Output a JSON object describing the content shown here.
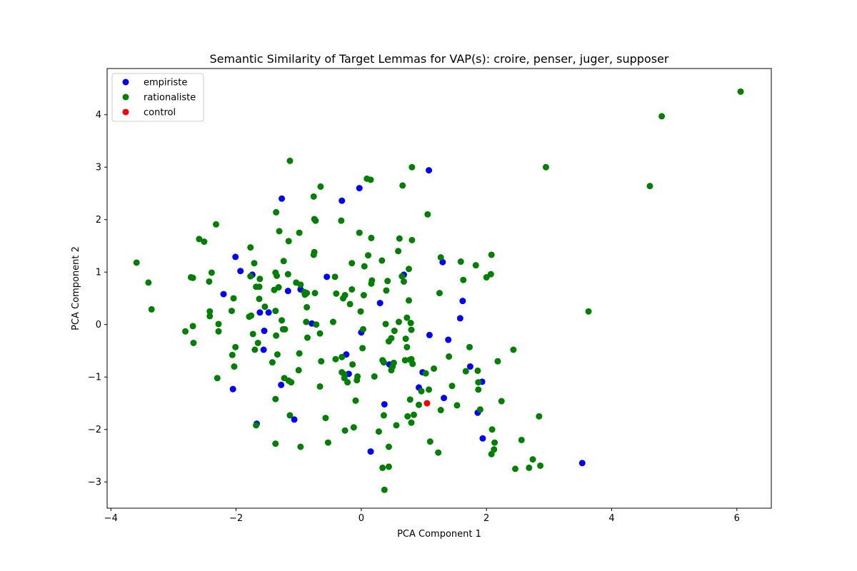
{
  "chart_data": {
    "type": "scatter",
    "title": "Semantic Similarity of Target Lemmas for VAP(s): croire, penser, juger, supposer",
    "xlabel": "PCA Component 1",
    "ylabel": "PCA Component 2",
    "xlim": [
      -4.06,
      6.55
    ],
    "ylim": [
      -3.5,
      4.88
    ],
    "xticks": [
      -4,
      -2,
      0,
      2,
      4,
      6
    ],
    "yticks": [
      -3,
      -2,
      -1,
      0,
      1,
      2,
      3,
      4
    ],
    "xtick_labels": [
      "−4",
      "−2",
      "0",
      "2",
      "4",
      "6"
    ],
    "ytick_labels": [
      "−3",
      "−2",
      "−1",
      "0",
      "1",
      "2",
      "3",
      "4"
    ],
    "grid": false,
    "legend_position": "top-left",
    "series": [
      {
        "name": "empiriste",
        "color": "#0000ff",
        "points": [
          [
            1.08,
            2.94
          ],
          [
            -0.03,
            2.6
          ],
          [
            -1.27,
            2.4
          ],
          [
            -0.31,
            2.36
          ],
          [
            -2.01,
            1.29
          ],
          [
            1.3,
            1.19
          ],
          [
            -1.93,
            1.02
          ],
          [
            -1.74,
            0.95
          ],
          [
            -0.55,
            0.91
          ],
          [
            0.68,
            0.95
          ],
          [
            -2.2,
            0.58
          ],
          [
            -1.17,
            0.64
          ],
          [
            -0.97,
            0.67
          ],
          [
            1.62,
            0.45
          ],
          [
            0.3,
            0.41
          ],
          [
            -1.62,
            0.23
          ],
          [
            -1.48,
            0.23
          ],
          [
            1.58,
            0.12
          ],
          [
            -0.79,
            0.02
          ],
          [
            -1.55,
            -0.12
          ],
          [
            0.0,
            -0.15
          ],
          [
            1.09,
            -0.2
          ],
          [
            1.39,
            -0.29
          ],
          [
            -1.56,
            -0.48
          ],
          [
            -0.24,
            -0.57
          ],
          [
            0.45,
            -0.76
          ],
          [
            1.74,
            -0.8
          ],
          [
            0.98,
            -0.91
          ],
          [
            -0.2,
            -0.94
          ],
          [
            1.93,
            -1.09
          ],
          [
            -2.05,
            -1.23
          ],
          [
            -1.28,
            -1.15
          ],
          [
            0.92,
            -1.2
          ],
          [
            1.32,
            -1.4
          ],
          [
            0.37,
            -1.52
          ],
          [
            1.86,
            -1.68
          ],
          [
            -1.67,
            -1.89
          ],
          [
            -1.07,
            -1.81
          ],
          [
            1.94,
            -2.17
          ],
          [
            0.15,
            -2.42
          ],
          [
            3.53,
            -2.64
          ]
        ]
      },
      {
        "name": "rationaliste",
        "color": "#008000",
        "points": [
          [
            6.06,
            4.44
          ],
          [
            4.8,
            3.97
          ],
          [
            2.95,
            3.0
          ],
          [
            4.61,
            2.64
          ],
          [
            3.63,
            0.25
          ],
          [
            -1.14,
            3.12
          ],
          [
            0.81,
            3.0
          ],
          [
            0.09,
            2.78
          ],
          [
            0.15,
            2.76
          ],
          [
            0.66,
            2.65
          ],
          [
            -0.65,
            2.63
          ],
          [
            -0.76,
            2.44
          ],
          [
            -1.36,
            2.14
          ],
          [
            1.06,
            2.1
          ],
          [
            -0.75,
            2.01
          ],
          [
            -0.73,
            1.98
          ],
          [
            -0.32,
            1.98
          ],
          [
            -2.32,
            1.91
          ],
          [
            -1.31,
            1.78
          ],
          [
            -0.03,
            1.75
          ],
          [
            -0.99,
            1.75
          ],
          [
            0.16,
            1.65
          ],
          [
            0.61,
            1.64
          ],
          [
            -2.59,
            1.63
          ],
          [
            -2.51,
            1.58
          ],
          [
            -1.16,
            1.59
          ],
          [
            0.81,
            1.61
          ],
          [
            -1.77,
            1.47
          ],
          [
            0.59,
            1.4
          ],
          [
            -0.75,
            1.38
          ],
          [
            -0.76,
            1.33
          ],
          [
            0.11,
            1.32
          ],
          [
            2.08,
            1.33
          ],
          [
            1.27,
            1.28
          ],
          [
            -1.24,
            1.21
          ],
          [
            0.33,
            1.22
          ],
          [
            1.59,
            1.2
          ],
          [
            -3.59,
            1.18
          ],
          [
            -0.15,
            1.17
          ],
          [
            -1.71,
            1.17
          ],
          [
            1.83,
            1.13
          ],
          [
            0.05,
            1.11
          ],
          [
            0.76,
            1.06
          ],
          [
            -2.39,
            0.99
          ],
          [
            -1.37,
            0.99
          ],
          [
            -1.17,
            0.96
          ],
          [
            -1.35,
            0.93
          ],
          [
            -1.77,
            0.92
          ],
          [
            -0.42,
            0.91
          ],
          [
            2.07,
            0.96
          ],
          [
            2.0,
            0.9
          ],
          [
            0.65,
            0.92
          ],
          [
            -2.72,
            0.9
          ],
          [
            -2.69,
            0.89
          ],
          [
            -1.62,
            0.87
          ],
          [
            1.63,
            0.85
          ],
          [
            0.68,
            0.82
          ],
          [
            0.17,
            0.84
          ],
          [
            -2.43,
            0.82
          ],
          [
            -3.4,
            0.8
          ],
          [
            0.16,
            0.78
          ],
          [
            -1.04,
            0.8
          ],
          [
            0.42,
            0.83
          ],
          [
            -0.97,
            0.76
          ],
          [
            -1.32,
            0.71
          ],
          [
            -1.68,
            0.72
          ],
          [
            -1.63,
            0.72
          ],
          [
            -1.39,
            0.66
          ],
          [
            -0.15,
            0.67
          ],
          [
            -0.91,
            0.62
          ],
          [
            -0.87,
            0.6
          ],
          [
            0.4,
            0.65
          ],
          [
            1.25,
            0.6
          ],
          [
            -0.4,
            0.59
          ],
          [
            -0.74,
            0.6
          ],
          [
            -0.9,
            0.57
          ],
          [
            -0.26,
            0.56
          ],
          [
            0.04,
            0.56
          ],
          [
            -2.04,
            0.5
          ],
          [
            -1.63,
            0.49
          ],
          [
            -0.29,
            0.5
          ],
          [
            -0.18,
            0.39
          ],
          [
            0.76,
            0.46
          ],
          [
            -1.54,
            0.34
          ],
          [
            -0.87,
            0.33
          ],
          [
            -3.35,
            0.29
          ],
          [
            -2.07,
            0.26
          ],
          [
            -1.37,
            0.26
          ],
          [
            -2.42,
            0.25
          ],
          [
            -0.01,
            0.25
          ],
          [
            -1.76,
            0.17
          ],
          [
            -2.42,
            0.16
          ],
          [
            -1.79,
            0.15
          ],
          [
            0.73,
            0.13
          ],
          [
            0.6,
            0.05
          ],
          [
            -1.27,
            0.08
          ],
          [
            -0.88,
            0.05
          ],
          [
            -0.45,
            0.05
          ],
          [
            0.79,
            0.03
          ],
          [
            -0.72,
            0.0
          ],
          [
            -2.28,
            0.01
          ],
          [
            0.39,
            0.01
          ],
          [
            -2.69,
            -0.03
          ],
          [
            -1.25,
            -0.09
          ],
          [
            -1.22,
            -0.09
          ],
          [
            0.03,
            -0.09
          ],
          [
            0.8,
            -0.1
          ],
          [
            -2.81,
            -0.13
          ],
          [
            -2.28,
            -0.13
          ],
          [
            -1.73,
            -0.18
          ],
          [
            -0.66,
            -0.17
          ],
          [
            -1.36,
            -0.21
          ],
          [
            0.53,
            -0.12
          ],
          [
            0.48,
            -0.26
          ],
          [
            -0.86,
            -0.25
          ],
          [
            0.71,
            -0.27
          ],
          [
            0.44,
            -0.32
          ],
          [
            -2.68,
            -0.35
          ],
          [
            -1.65,
            -0.35
          ],
          [
            0.73,
            -0.43
          ],
          [
            1.73,
            -0.43
          ],
          [
            -2.01,
            -0.43
          ],
          [
            0.02,
            -0.45
          ],
          [
            2.43,
            -0.48
          ],
          [
            -1.7,
            -0.48
          ],
          [
            -1.34,
            -0.57
          ],
          [
            -2.06,
            -0.58
          ],
          [
            -0.99,
            -0.55
          ],
          [
            -0.57,
            -1.78
          ],
          [
            -0.31,
            -0.62
          ],
          [
            1.4,
            -0.61
          ],
          [
            -0.41,
            -0.66
          ],
          [
            0.8,
            -0.66
          ],
          [
            0.7,
            -0.68
          ],
          [
            -0.64,
            -0.7
          ],
          [
            0.34,
            -0.68
          ],
          [
            0.78,
            -0.67
          ],
          [
            0.36,
            -0.72
          ],
          [
            -1.42,
            -0.72
          ],
          [
            2.18,
            -0.7
          ],
          [
            0.52,
            -0.73
          ],
          [
            -0.14,
            -0.76
          ],
          [
            0.82,
            -0.75
          ],
          [
            -2.03,
            -0.8
          ],
          [
            0.5,
            -0.8
          ],
          [
            1.16,
            -0.84
          ],
          [
            1.67,
            -0.89
          ],
          [
            -1.0,
            -0.87
          ],
          [
            0.48,
            -0.87
          ],
          [
            1.86,
            -0.88
          ],
          [
            -0.31,
            -0.91
          ],
          [
            1.03,
            -0.93
          ],
          [
            -0.27,
            -0.95
          ],
          [
            0.21,
            -0.99
          ],
          [
            -0.06,
            -0.99
          ],
          [
            -1.23,
            -1.02
          ],
          [
            -2.3,
            -1.02
          ],
          [
            -0.27,
            -1.02
          ],
          [
            -0.07,
            -1.06
          ],
          [
            -1.16,
            -1.07
          ],
          [
            -1.12,
            -1.1
          ],
          [
            1.87,
            -1.1
          ],
          [
            -0.22,
            -1.1
          ],
          [
            -0.66,
            -1.18
          ],
          [
            1.45,
            -1.17
          ],
          [
            1.87,
            -1.24
          ],
          [
            1.08,
            -1.24
          ],
          [
            0.96,
            -1.27
          ],
          [
            -1.37,
            -1.42
          ],
          [
            0.78,
            -1.43
          ],
          [
            -0.09,
            -1.45
          ],
          [
            2.24,
            -1.46
          ],
          [
            0.92,
            -1.53
          ],
          [
            1.53,
            -1.54
          ],
          [
            1.27,
            -1.63
          ],
          [
            1.9,
            -1.62
          ],
          [
            0.84,
            -1.72
          ],
          [
            -1.14,
            -1.73
          ],
          [
            0.74,
            -1.75
          ],
          [
            0.36,
            -1.73
          ],
          [
            2.84,
            -1.75
          ],
          [
            0.8,
            -1.87
          ],
          [
            0.56,
            -1.92
          ],
          [
            -1.68,
            -1.92
          ],
          [
            -0.12,
            -1.96
          ],
          [
            -0.26,
            -2.02
          ],
          [
            2.09,
            -2.0
          ],
          [
            0.28,
            -2.04
          ],
          [
            2.56,
            -2.2
          ],
          [
            1.1,
            -2.23
          ],
          [
            -0.53,
            -2.25
          ],
          [
            2.13,
            -2.25
          ],
          [
            -1.37,
            -2.27
          ],
          [
            -0.97,
            -2.33
          ],
          [
            0.44,
            -2.33
          ],
          [
            2.12,
            -2.38
          ],
          [
            1.23,
            -2.44
          ],
          [
            2.08,
            -2.47
          ],
          [
            2.74,
            -2.57
          ],
          [
            2.86,
            -2.69
          ],
          [
            0.44,
            -2.71
          ],
          [
            0.34,
            -2.73
          ],
          [
            2.68,
            -2.73
          ],
          [
            2.46,
            -2.75
          ],
          [
            0.37,
            -3.15
          ]
        ]
      },
      {
        "name": "control",
        "color": "#ff0000",
        "points": [
          [
            1.05,
            -1.5
          ]
        ]
      }
    ]
  }
}
